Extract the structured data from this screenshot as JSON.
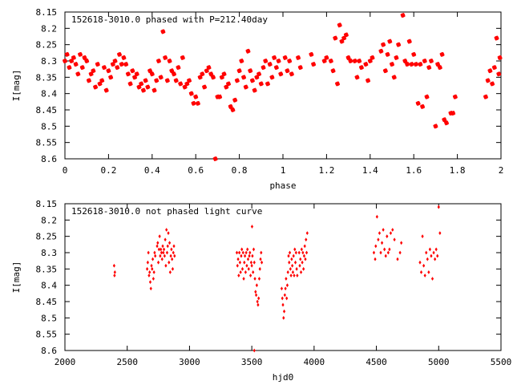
{
  "colors": {
    "points": "#ff0000",
    "axes": "#000000",
    "background": "#ffffff"
  },
  "chart_data": [
    {
      "type": "scatter",
      "title": "152618-3010.0 phased with P=212.40day",
      "xlabel": "phase",
      "ylabel": "I[mag]",
      "xlim": [
        0,
        2
      ],
      "ylim": [
        8.15,
        8.6
      ],
      "y_inverted": true,
      "marker": "filled-star",
      "x_ticks": [
        0,
        0.2,
        0.4,
        0.6,
        0.8,
        1,
        1.2,
        1.4,
        1.6,
        1.8,
        2
      ],
      "x_tick_labels": [
        "0",
        "0.2",
        "0.4",
        "0.6",
        "0.8",
        "1",
        "1.2",
        "1.4",
        "1.6",
        "1.8",
        "2"
      ],
      "y_ticks": [
        8.15,
        8.2,
        8.25,
        8.3,
        8.35,
        8.4,
        8.45,
        8.5,
        8.55,
        8.6
      ],
      "y_tick_labels": [
        "8.15",
        "8.2",
        "8.25",
        "8.3",
        "8.35",
        "8.4",
        "8.45",
        "8.5",
        "8.55",
        "8.6"
      ],
      "points": [
        [
          0.0,
          8.3
        ],
        [
          0.01,
          8.28
        ],
        [
          0.02,
          8.32
        ],
        [
          0.03,
          8.3
        ],
        [
          0.04,
          8.29
        ],
        [
          0.05,
          8.31
        ],
        [
          0.06,
          8.34
        ],
        [
          0.07,
          8.28
        ],
        [
          0.08,
          8.32
        ],
        [
          0.09,
          8.29
        ],
        [
          0.1,
          8.3
        ],
        [
          0.11,
          8.36
        ],
        [
          0.12,
          8.34
        ],
        [
          0.13,
          8.33
        ],
        [
          0.14,
          8.38
        ],
        [
          0.15,
          8.31
        ],
        [
          0.16,
          8.37
        ],
        [
          0.17,
          8.36
        ],
        [
          0.18,
          8.32
        ],
        [
          0.19,
          8.39
        ],
        [
          0.2,
          8.33
        ],
        [
          0.21,
          8.35
        ],
        [
          0.22,
          8.31
        ],
        [
          0.23,
          8.3
        ],
        [
          0.24,
          8.32
        ],
        [
          0.25,
          8.28
        ],
        [
          0.26,
          8.31
        ],
        [
          0.27,
          8.29
        ],
        [
          0.28,
          8.31
        ],
        [
          0.29,
          8.34
        ],
        [
          0.3,
          8.37
        ],
        [
          0.31,
          8.33
        ],
        [
          0.32,
          8.35
        ],
        [
          0.33,
          8.34
        ],
        [
          0.34,
          8.38
        ],
        [
          0.35,
          8.37
        ],
        [
          0.36,
          8.39
        ],
        [
          0.37,
          8.36
        ],
        [
          0.38,
          8.38
        ],
        [
          0.39,
          8.33
        ],
        [
          0.4,
          8.34
        ],
        [
          0.41,
          8.39
        ],
        [
          0.42,
          8.36
        ],
        [
          0.43,
          8.3
        ],
        [
          0.44,
          8.35
        ],
        [
          0.45,
          8.21
        ],
        [
          0.46,
          8.29
        ],
        [
          0.47,
          8.36
        ],
        [
          0.48,
          8.3
        ],
        [
          0.49,
          8.33
        ],
        [
          0.5,
          8.34
        ],
        [
          0.51,
          8.36
        ],
        [
          0.52,
          8.32
        ],
        [
          0.53,
          8.37
        ],
        [
          0.54,
          8.29
        ],
        [
          0.55,
          8.38
        ],
        [
          0.56,
          8.37
        ],
        [
          0.57,
          8.36
        ],
        [
          0.58,
          8.4
        ],
        [
          0.59,
          8.43
        ],
        [
          0.6,
          8.41
        ],
        [
          0.61,
          8.43
        ],
        [
          0.62,
          8.35
        ],
        [
          0.63,
          8.34
        ],
        [
          0.64,
          8.38
        ],
        [
          0.65,
          8.33
        ],
        [
          0.66,
          8.32
        ],
        [
          0.67,
          8.34
        ],
        [
          0.68,
          8.35
        ],
        [
          0.69,
          8.6
        ],
        [
          0.7,
          8.41
        ],
        [
          0.71,
          8.41
        ],
        [
          0.72,
          8.35
        ],
        [
          0.73,
          8.34
        ],
        [
          0.74,
          8.38
        ],
        [
          0.75,
          8.37
        ],
        [
          0.76,
          8.44
        ],
        [
          0.77,
          8.45
        ],
        [
          0.78,
          8.42
        ],
        [
          0.79,
          8.36
        ],
        [
          0.8,
          8.33
        ],
        [
          0.81,
          8.3
        ],
        [
          0.82,
          8.35
        ],
        [
          0.83,
          8.38
        ],
        [
          0.84,
          8.27
        ],
        [
          0.85,
          8.33
        ],
        [
          0.86,
          8.36
        ],
        [
          0.87,
          8.39
        ],
        [
          0.88,
          8.35
        ],
        [
          0.89,
          8.34
        ],
        [
          0.9,
          8.37
        ],
        [
          0.91,
          8.32
        ],
        [
          0.92,
          8.3
        ],
        [
          0.93,
          8.37
        ],
        [
          0.94,
          8.31
        ],
        [
          0.95,
          8.35
        ],
        [
          0.96,
          8.29
        ],
        [
          0.97,
          8.32
        ],
        [
          0.98,
          8.3
        ],
        [
          0.99,
          8.34
        ],
        [
          1.01,
          8.29
        ],
        [
          1.02,
          8.33
        ],
        [
          1.03,
          8.3
        ],
        [
          1.04,
          8.34
        ],
        [
          1.07,
          8.29
        ],
        [
          1.08,
          8.32
        ],
        [
          1.13,
          8.28
        ],
        [
          1.14,
          8.31
        ],
        [
          1.19,
          8.3
        ],
        [
          1.2,
          8.29
        ],
        [
          1.22,
          8.3
        ],
        [
          1.23,
          8.33
        ],
        [
          1.24,
          8.23
        ],
        [
          1.25,
          8.37
        ],
        [
          1.26,
          8.19
        ],
        [
          1.27,
          8.24
        ],
        [
          1.28,
          8.23
        ],
        [
          1.29,
          8.22
        ],
        [
          1.3,
          8.29
        ],
        [
          1.31,
          8.3
        ],
        [
          1.33,
          8.3
        ],
        [
          1.34,
          8.35
        ],
        [
          1.35,
          8.3
        ],
        [
          1.36,
          8.32
        ],
        [
          1.38,
          8.31
        ],
        [
          1.39,
          8.36
        ],
        [
          1.4,
          8.3
        ],
        [
          1.41,
          8.29
        ],
        [
          1.45,
          8.27
        ],
        [
          1.46,
          8.25
        ],
        [
          1.47,
          8.33
        ],
        [
          1.48,
          8.28
        ],
        [
          1.49,
          8.24
        ],
        [
          1.5,
          8.31
        ],
        [
          1.51,
          8.35
        ],
        [
          1.52,
          8.29
        ],
        [
          1.53,
          8.25
        ],
        [
          1.55,
          8.16
        ],
        [
          1.56,
          8.3
        ],
        [
          1.57,
          8.31
        ],
        [
          1.58,
          8.24
        ],
        [
          1.59,
          8.31
        ],
        [
          1.6,
          8.28
        ],
        [
          1.61,
          8.31
        ],
        [
          1.62,
          8.43
        ],
        [
          1.63,
          8.31
        ],
        [
          1.64,
          8.44
        ],
        [
          1.65,
          8.3
        ],
        [
          1.66,
          8.41
        ],
        [
          1.67,
          8.32
        ],
        [
          1.68,
          8.3
        ],
        [
          1.7,
          8.5
        ],
        [
          1.71,
          8.31
        ],
        [
          1.72,
          8.32
        ],
        [
          1.73,
          8.28
        ],
        [
          1.74,
          8.48
        ],
        [
          1.75,
          8.49
        ],
        [
          1.77,
          8.46
        ],
        [
          1.78,
          8.46
        ],
        [
          1.79,
          8.41
        ],
        [
          1.93,
          8.41
        ],
        [
          1.94,
          8.36
        ],
        [
          1.95,
          8.33
        ],
        [
          1.96,
          8.37
        ],
        [
          1.97,
          8.32
        ],
        [
          1.98,
          8.23
        ],
        [
          1.99,
          8.34
        ],
        [
          1.995,
          8.29
        ]
      ]
    },
    {
      "type": "scatter",
      "title": "152618-3010.0 not phased light curve",
      "xlabel": "hjd0",
      "ylabel": "I[mag]",
      "xlim": [
        2000,
        5500
      ],
      "ylim": [
        8.15,
        8.6
      ],
      "y_inverted": true,
      "marker": "small-diamond",
      "x_ticks": [
        2000,
        2500,
        3000,
        3500,
        4000,
        4500,
        5000,
        5500
      ],
      "x_tick_labels": [
        "2000",
        "2500",
        "3000",
        "3500",
        "4000",
        "4500",
        "5000",
        "5500"
      ],
      "y_ticks": [
        8.15,
        8.2,
        8.25,
        8.3,
        8.35,
        8.4,
        8.45,
        8.5,
        8.55,
        8.6
      ],
      "y_tick_labels": [
        "8.15",
        "8.2",
        "8.25",
        "8.3",
        "8.35",
        "8.4",
        "8.45",
        "8.5",
        "8.55",
        "8.6"
      ],
      "points": [
        [
          2395,
          8.34
        ],
        [
          2398,
          8.37
        ],
        [
          2401,
          8.36
        ],
        [
          2660,
          8.35
        ],
        [
          2665,
          8.33
        ],
        [
          2670,
          8.3
        ],
        [
          2675,
          8.37
        ],
        [
          2680,
          8.36
        ],
        [
          2685,
          8.39
        ],
        [
          2690,
          8.41
        ],
        [
          2695,
          8.34
        ],
        [
          2700,
          8.35
        ],
        [
          2705,
          8.32
        ],
        [
          2710,
          8.38
        ],
        [
          2715,
          8.36
        ],
        [
          2720,
          8.3
        ],
        [
          2725,
          8.31
        ],
        [
          2740,
          8.28
        ],
        [
          2745,
          8.27
        ],
        [
          2750,
          8.33
        ],
        [
          2755,
          8.29
        ],
        [
          2760,
          8.25
        ],
        [
          2765,
          8.31
        ],
        [
          2770,
          8.29
        ],
        [
          2775,
          8.3
        ],
        [
          2780,
          8.32
        ],
        [
          2785,
          8.28
        ],
        [
          2790,
          8.3
        ],
        [
          2795,
          8.29
        ],
        [
          2800,
          8.31
        ],
        [
          2805,
          8.26
        ],
        [
          2810,
          8.34
        ],
        [
          2815,
          8.23
        ],
        [
          2820,
          8.3
        ],
        [
          2825,
          8.28
        ],
        [
          2830,
          8.24
        ],
        [
          2835,
          8.33
        ],
        [
          2840,
          8.27
        ],
        [
          2845,
          8.36
        ],
        [
          2850,
          8.31
        ],
        [
          2855,
          8.29
        ],
        [
          2860,
          8.32
        ],
        [
          2865,
          8.35
        ],
        [
          2870,
          8.3
        ],
        [
          2875,
          8.28
        ],
        [
          2880,
          8.31
        ],
        [
          3380,
          8.3
        ],
        [
          3385,
          8.34
        ],
        [
          3390,
          8.32
        ],
        [
          3395,
          8.37
        ],
        [
          3400,
          8.3
        ],
        [
          3405,
          8.33
        ],
        [
          3410,
          8.36
        ],
        [
          3415,
          8.31
        ],
        [
          3420,
          8.29
        ],
        [
          3425,
          8.35
        ],
        [
          3430,
          8.3
        ],
        [
          3435,
          8.38
        ],
        [
          3440,
          8.33
        ],
        [
          3445,
          8.31
        ],
        [
          3450,
          8.36
        ],
        [
          3455,
          8.3
        ],
        [
          3460,
          8.34
        ],
        [
          3465,
          8.29
        ],
        [
          3470,
          8.32
        ],
        [
          3475,
          8.35
        ],
        [
          3480,
          8.31
        ],
        [
          3485,
          8.3
        ],
        [
          3490,
          8.37
        ],
        [
          3495,
          8.33
        ],
        [
          3500,
          8.34
        ],
        [
          3502,
          8.22
        ],
        [
          3505,
          8.31
        ],
        [
          3510,
          8.36
        ],
        [
          3515,
          8.29
        ],
        [
          3520,
          8.33
        ],
        [
          3525,
          8.38
        ],
        [
          3530,
          8.42
        ],
        [
          3535,
          8.43
        ],
        [
          3540,
          8.4
        ],
        [
          3545,
          8.45
        ],
        [
          3550,
          8.46
        ],
        [
          3555,
          8.44
        ],
        [
          3560,
          8.38
        ],
        [
          3565,
          8.35
        ],
        [
          3570,
          8.32
        ],
        [
          3575,
          8.3
        ],
        [
          3580,
          8.33
        ],
        [
          3520,
          8.6
        ],
        [
          3740,
          8.41
        ],
        [
          3745,
          8.44
        ],
        [
          3750,
          8.46
        ],
        [
          3755,
          8.5
        ],
        [
          3760,
          8.48
        ],
        [
          3765,
          8.43
        ],
        [
          3770,
          8.41
        ],
        [
          3775,
          8.38
        ],
        [
          3780,
          8.44
        ],
        [
          3785,
          8.4
        ],
        [
          3790,
          8.36
        ],
        [
          3795,
          8.31
        ],
        [
          3800,
          8.33
        ],
        [
          3805,
          8.3
        ],
        [
          3810,
          8.35
        ],
        [
          3815,
          8.37
        ],
        [
          3820,
          8.32
        ],
        [
          3825,
          8.34
        ],
        [
          3830,
          8.36
        ],
        [
          3835,
          8.31
        ],
        [
          3840,
          8.37
        ],
        [
          3845,
          8.29
        ],
        [
          3850,
          8.33
        ],
        [
          3855,
          8.3
        ],
        [
          3860,
          8.35
        ],
        [
          3865,
          8.37
        ],
        [
          3880,
          8.3
        ],
        [
          3885,
          8.34
        ],
        [
          3890,
          8.32
        ],
        [
          3895,
          8.36
        ],
        [
          3900,
          8.29
        ],
        [
          3905,
          8.33
        ],
        [
          3910,
          8.3
        ],
        [
          3915,
          8.35
        ],
        [
          3920,
          8.31
        ],
        [
          3925,
          8.28
        ],
        [
          3930,
          8.32
        ],
        [
          3935,
          8.26
        ],
        [
          3940,
          8.3
        ],
        [
          3945,
          8.24
        ],
        [
          4480,
          8.3
        ],
        [
          4490,
          8.32
        ],
        [
          4495,
          8.28
        ],
        [
          4505,
          8.19
        ],
        [
          4515,
          8.26
        ],
        [
          4525,
          8.24
        ],
        [
          4535,
          8.3
        ],
        [
          4545,
          8.27
        ],
        [
          4555,
          8.23
        ],
        [
          4565,
          8.29
        ],
        [
          4575,
          8.31
        ],
        [
          4585,
          8.25
        ],
        [
          4595,
          8.3
        ],
        [
          4605,
          8.29
        ],
        [
          4615,
          8.24
        ],
        [
          4630,
          8.23
        ],
        [
          4645,
          8.26
        ],
        [
          4670,
          8.32
        ],
        [
          4690,
          8.3
        ],
        [
          4700,
          8.27
        ],
        [
          4850,
          8.33
        ],
        [
          4860,
          8.36
        ],
        [
          4870,
          8.25
        ],
        [
          4880,
          8.34
        ],
        [
          4890,
          8.37
        ],
        [
          4900,
          8.3
        ],
        [
          4910,
          8.32
        ],
        [
          4920,
          8.36
        ],
        [
          4930,
          8.29
        ],
        [
          4940,
          8.31
        ],
        [
          4950,
          8.38
        ],
        [
          4960,
          8.3
        ],
        [
          4970,
          8.32
        ],
        [
          4980,
          8.29
        ],
        [
          4990,
          8.31
        ],
        [
          5000,
          8.16
        ],
        [
          5010,
          8.24
        ]
      ]
    }
  ]
}
